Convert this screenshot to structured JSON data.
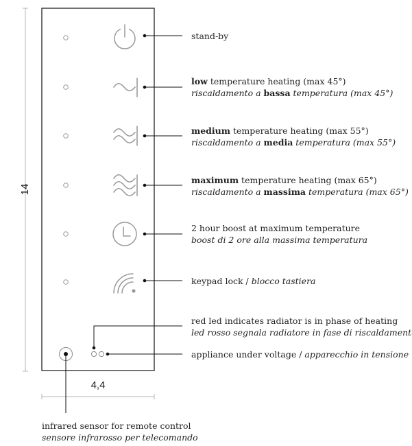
{
  "dimensions": {
    "height": "14",
    "width": "4,4"
  },
  "icons": [
    "power-icon",
    "low-heat-wave-icon",
    "medium-heat-wave-icon",
    "maximum-heat-wave-icon",
    "clock-icon",
    "keypad-lock-icon"
  ],
  "colors": {
    "icon": "#9a9a9a",
    "text": "#222222",
    "leader": "#111111",
    "dimension": "#b5b5b5"
  },
  "labels": {
    "standby": "stand-by",
    "low": {
      "en_bold": "low",
      "en_rest": " temperature heating (max 45°)",
      "it_pre": "riscaldamento a ",
      "it_bold": "bassa",
      "it_post": " temperatura (max 45°)"
    },
    "medium": {
      "en_bold": "medium",
      "en_rest": " temperature heating (max 55°)",
      "it_pre": "riscaldamento a ",
      "it_bold": "media",
      "it_post": " temperatura (max 55°)"
    },
    "maximum": {
      "en_bold": "maximum",
      "en_rest": " temperature heating (max 65°)",
      "it_pre": "riscaldamento a ",
      "it_bold": "massima",
      "it_post": " temperatura (max 65°)"
    },
    "boost": {
      "en": "2 hour boost at maximum temperature",
      "it": "boost di 2 ore alla massima temperatura"
    },
    "keypad_lock": {
      "en": "keypad lock / ",
      "it": "blocco tastiera"
    },
    "heating_led": {
      "en": "red led indicates radiator is in phase of heating",
      "it": "led rosso segnala radiatore in fase di riscaldamento"
    },
    "voltage": {
      "en": "appliance under voltage / ",
      "it": "apparecchio in tensione"
    },
    "infrared": {
      "en": "infrared sensor for remote control",
      "it": "sensore infrarosso per telecomando"
    }
  }
}
